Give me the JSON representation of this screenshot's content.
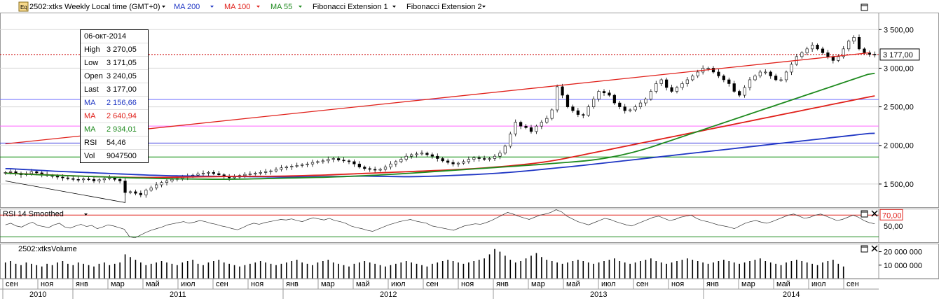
{
  "header": {
    "icon_label": "Eq",
    "instrument": "2502:xtks Weekly Local time (GMT+0)",
    "indicators": [
      {
        "label": "MA 200",
        "color": "#1f36c4"
      },
      {
        "label": "MA 100",
        "color": "#e0201a"
      },
      {
        "label": "MA 55",
        "color": "#1e8a1e"
      },
      {
        "label": "Fibonacci Extension 1",
        "color": "#000000"
      },
      {
        "label": "Fibonacci Extension 2",
        "color": "#000000"
      }
    ]
  },
  "info": {
    "date": "06-окт-2014",
    "rows": [
      {
        "label": "High",
        "value": "3 270,05",
        "color": "#000000"
      },
      {
        "label": "Low",
        "value": "3 171,05",
        "color": "#000000"
      },
      {
        "label": "Open",
        "value": "3 240,05",
        "color": "#000000"
      },
      {
        "label": "Last",
        "value": "3 177,00",
        "color": "#000000"
      },
      {
        "label": "MA",
        "value": "2 156,66",
        "color": "#1f36c4"
      },
      {
        "label": "MA",
        "value": "2 640,94",
        "color": "#e0201a"
      },
      {
        "label": "MA",
        "value": "2 934,01",
        "color": "#1e8a1e"
      },
      {
        "label": "RSI",
        "value": "54,46",
        "color": "#000000"
      },
      {
        "label": "Vol",
        "value": "9047500",
        "color": "#000000"
      }
    ]
  },
  "price_axis": {
    "ticks": [
      "3 500,00",
      "3 000,00",
      "2 500,00",
      "2 000,00",
      "1 500,00"
    ],
    "tick_values": [
      3500,
      3000,
      2500,
      2000,
      1500
    ],
    "range": [
      1200,
      3720
    ],
    "last_label": "3 177,00",
    "last_value": 3177
  },
  "rsi": {
    "title": "RSI 14 Smoothed",
    "ticks": [
      "70,00",
      "50,00"
    ],
    "tick_values": [
      70,
      50
    ],
    "range": [
      20,
      82
    ],
    "upper": 70,
    "lower": 30
  },
  "volume": {
    "title": "2502:xtksVolume",
    "ticks": [
      "20 000 000",
      "10 000 000"
    ],
    "tick_values": [
      20000000,
      10000000
    ],
    "range": [
      0,
      26000000
    ]
  },
  "time_axis": {
    "months": [
      "сен",
      "ноя",
      "янв",
      "мар",
      "май",
      "июл",
      "сен",
      "ноя",
      "янв",
      "мар",
      "май",
      "июл",
      "сен",
      "ноя",
      "янв",
      "мар",
      "май",
      "июл",
      "сен",
      "ноя",
      "янв",
      "мар",
      "май",
      "июл",
      "сен"
    ],
    "years": [
      {
        "label": "2010",
        "start": 0,
        "end": 2
      },
      {
        "label": "2011",
        "start": 2,
        "end": 8
      },
      {
        "label": "2012",
        "start": 8,
        "end": 14
      },
      {
        "label": "2013",
        "start": 14,
        "end": 20
      },
      {
        "label": "2014",
        "start": 20,
        "end": 25
      }
    ]
  },
  "chart_data": {
    "type": "candlestick",
    "title": "2502:xtks Weekly Local time (GMT+0)",
    "x_range": [
      "2010-08",
      "2014-10"
    ],
    "close": [
      1650,
      1660,
      1640,
      1620,
      1635,
      1660,
      1645,
      1625,
      1610,
      1600,
      1590,
      1580,
      1570,
      1560,
      1555,
      1565,
      1560,
      1540,
      1555,
      1570,
      1580,
      1560,
      1540,
      1390,
      1400,
      1380,
      1360,
      1420,
      1450,
      1490,
      1520,
      1540,
      1560,
      1575,
      1590,
      1600,
      1615,
      1630,
      1640,
      1650,
      1635,
      1620,
      1600,
      1580,
      1590,
      1610,
      1625,
      1630,
      1640,
      1650,
      1660,
      1670,
      1690,
      1710,
      1720,
      1730,
      1740,
      1750,
      1760,
      1780,
      1790,
      1800,
      1820,
      1830,
      1810,
      1800,
      1790,
      1760,
      1720,
      1700,
      1690,
      1680,
      1690,
      1720,
      1760,
      1790,
      1820,
      1860,
      1880,
      1890,
      1900,
      1880,
      1860,
      1830,
      1800,
      1780,
      1760,
      1770,
      1790,
      1820,
      1840,
      1830,
      1820,
      1830,
      1860,
      1900,
      1990,
      2150,
      2300,
      2250,
      2230,
      2180,
      2250,
      2300,
      2350,
      2460,
      2760,
      2650,
      2500,
      2450,
      2400,
      2390,
      2500,
      2600,
      2700,
      2680,
      2650,
      2550,
      2500,
      2450,
      2460,
      2500,
      2550,
      2600,
      2700,
      2800,
      2850,
      2750,
      2700,
      2750,
      2800,
      2850,
      2900,
      2950,
      3000,
      3000,
      2950,
      2900,
      2850,
      2800,
      2700,
      2650,
      2750,
      2850,
      2900,
      2950,
      2950,
      2900,
      2850,
      2850,
      2950,
      3050,
      3150,
      3200,
      3250,
      3300,
      3250,
      3200,
      3150,
      3100,
      3150,
      3250,
      3350,
      3400,
      3250,
      3200,
      3180,
      3177
    ],
    "ma200": [
      1700,
      1698,
      1694,
      1690,
      1686,
      1682,
      1678,
      1674,
      1670,
      1666,
      1663,
      1660,
      1657,
      1654,
      1651,
      1648,
      1645,
      1642,
      1639,
      1636,
      1633,
      1630,
      1627,
      1624,
      1621,
      1618,
      1615,
      1613,
      1611,
      1609,
      1607,
      1606,
      1605,
      1604,
      1603,
      1602,
      1601,
      1601,
      1600,
      1600,
      1599,
      1599,
      1598,
      1597,
      1596,
      1595,
      1594,
      1593,
      1592,
      1591,
      1590,
      1590,
      1590,
      1591,
      1592,
      1593,
      1594,
      1595,
      1596,
      1597,
      1598,
      1599,
      1600,
      1601,
      1602,
      1602,
      1601,
      1600,
      1599,
      1598,
      1597,
      1596,
      1595,
      1595,
      1596,
      1597,
      1599,
      1601,
      1603,
      1606,
      1609,
      1612,
      1615,
      1618,
      1621,
      1624,
      1628,
      1632,
      1636,
      1641,
      1646,
      1651,
      1657,
      1663,
      1669,
      1676,
      1683,
      1690,
      1697,
      1704,
      1711,
      1718,
      1725,
      1732,
      1739,
      1747,
      1755,
      1763,
      1771,
      1779,
      1787,
      1795,
      1803,
      1811,
      1819,
      1827,
      1835,
      1843,
      1851,
      1859,
      1867,
      1875,
      1883,
      1891,
      1899,
      1907,
      1915,
      1923,
      1931,
      1939,
      1947,
      1955,
      1963,
      1971,
      1979,
      1987,
      1995,
      2003,
      2011,
      2019,
      2027,
      2035,
      2043,
      2051,
      2059,
      2067,
      2075,
      2083,
      2091,
      2099,
      2107,
      2115,
      2123,
      2131,
      2139,
      2147,
      2155,
      2157
    ],
    "ma100": [
      1640,
      1638,
      1635,
      1632,
      1629,
      1626,
      1623,
      1620,
      1617,
      1614,
      1611,
      1608,
      1605,
      1602,
      1600,
      1598,
      1596,
      1594,
      1592,
      1590,
      1588,
      1587,
      1586,
      1585,
      1585,
      1585,
      1585,
      1586,
      1587,
      1588,
      1589,
      1590,
      1591,
      1592,
      1593,
      1594,
      1595,
      1596,
      1597,
      1598,
      1599,
      1600,
      1600,
      1600,
      1600,
      1600,
      1600,
      1601,
      1602,
      1603,
      1605,
      1607,
      1609,
      1611,
      1613,
      1615,
      1617,
      1620,
      1623,
      1626,
      1629,
      1632,
      1635,
      1638,
      1641,
      1644,
      1647,
      1650,
      1653,
      1656,
      1659,
      1662,
      1665,
      1668,
      1671,
      1674,
      1677,
      1680,
      1684,
      1688,
      1692,
      1696,
      1700,
      1705,
      1710,
      1716,
      1722,
      1728,
      1734,
      1741,
      1748,
      1756,
      1764,
      1773,
      1783,
      1794,
      1806,
      1819,
      1833,
      1848,
      1863,
      1878,
      1893,
      1908,
      1923,
      1938,
      1953,
      1968,
      1983,
      1998,
      2013,
      2028,
      2043,
      2058,
      2073,
      2088,
      2103,
      2118,
      2133,
      2148,
      2163,
      2178,
      2193,
      2208,
      2223,
      2238,
      2253,
      2268,
      2283,
      2298,
      2313,
      2328,
      2343,
      2358,
      2373,
      2388,
      2403,
      2418,
      2433,
      2448,
      2463,
      2478,
      2493,
      2508,
      2523,
      2538,
      2553,
      2568,
      2583,
      2598,
      2613,
      2628,
      2641
    ],
    "ma55": [
      1640,
      1636,
      1632,
      1628,
      1624,
      1620,
      1617,
      1614,
      1611,
      1608,
      1605,
      1602,
      1599,
      1596,
      1593,
      1590,
      1587,
      1584,
      1581,
      1579,
      1577,
      1575,
      1573,
      1571,
      1569,
      1567,
      1566,
      1565,
      1564,
      1563,
      1562,
      1562,
      1562,
      1563,
      1564,
      1565,
      1567,
      1569,
      1571,
      1573,
      1575,
      1577,
      1579,
      1581,
      1583,
      1585,
      1587,
      1590,
      1593,
      1596,
      1600,
      1604,
      1608,
      1612,
      1616,
      1621,
      1626,
      1631,
      1636,
      1642,
      1648,
      1654,
      1660,
      1666,
      1672,
      1678,
      1684,
      1690,
      1696,
      1702,
      1708,
      1714,
      1720,
      1726,
      1732,
      1738,
      1744,
      1750,
      1757,
      1764,
      1771,
      1778,
      1785,
      1792,
      1800,
      1810,
      1822,
      1836,
      1852,
      1870,
      1890,
      1912,
      1936,
      1962,
      1990,
      2020,
      2050,
      2080,
      2110,
      2140,
      2170,
      2200,
      2230,
      2260,
      2290,
      2320,
      2350,
      2380,
      2410,
      2440,
      2470,
      2500,
      2530,
      2560,
      2590,
      2620,
      2650,
      2680,
      2710,
      2740,
      2770,
      2800,
      2830,
      2860,
      2890,
      2920,
      2934
    ],
    "fib_line": {
      "start": [
        0,
        2020
      ],
      "end": [
        166,
        3200
      ]
    },
    "horizontal_levels": [
      {
        "value": 2595,
        "color": "#7070ff"
      },
      {
        "value": 2250,
        "color": "#ff66ff"
      },
      {
        "value": 2030,
        "color": "#4040e0"
      },
      {
        "value": 1850,
        "color": "#008800"
      },
      {
        "value": 3177,
        "color": "#cc0000",
        "dotted": true
      }
    ],
    "rsi_values": [
      52,
      55,
      50,
      48,
      53,
      57,
      51,
      49,
      47,
      52,
      55,
      48,
      46,
      50,
      53,
      49,
      51,
      45,
      48,
      52,
      50,
      47,
      44,
      30,
      28,
      33,
      38,
      42,
      45,
      48,
      52,
      54,
      56,
      58,
      55,
      57,
      60,
      58,
      55,
      53,
      50,
      48,
      45,
      43,
      47,
      52,
      55,
      53,
      56,
      58,
      60,
      62,
      61,
      63,
      60,
      58,
      62,
      65,
      63,
      61,
      64,
      60,
      58,
      55,
      50,
      47,
      45,
      42,
      40,
      44,
      48,
      52,
      55,
      58,
      60,
      62,
      59,
      57,
      55,
      50,
      48,
      46,
      44,
      42,
      46,
      50,
      52,
      54,
      53,
      56,
      60,
      65,
      70,
      75,
      72,
      68,
      65,
      62,
      66,
      70,
      72,
      75,
      80,
      76,
      68,
      63,
      58,
      55,
      52,
      56,
      60,
      64,
      62,
      58,
      55,
      52,
      50,
      54,
      58,
      62,
      66,
      68,
      64,
      60,
      62,
      66,
      68,
      70,
      64,
      60,
      58,
      55,
      52,
      50,
      48,
      45,
      50,
      55,
      58,
      60,
      57,
      55,
      58,
      62,
      66,
      70,
      72,
      68,
      64,
      66,
      70,
      72,
      68,
      64,
      60,
      62,
      66,
      70,
      66,
      60,
      56,
      54
    ],
    "volume_values": [
      12,
      13,
      11,
      10,
      12,
      11,
      10,
      9,
      11,
      10,
      12,
      13,
      11,
      10,
      12,
      11,
      10,
      9,
      11,
      12,
      10,
      11,
      12,
      18,
      16,
      14,
      12,
      10,
      11,
      12,
      13,
      12,
      11,
      10,
      12,
      13,
      14,
      11,
      10,
      12,
      13,
      14,
      12,
      11,
      10,
      9,
      10,
      11,
      12,
      13,
      12,
      11,
      10,
      11,
      12,
      13,
      14,
      12,
      11,
      10,
      12,
      13,
      14,
      12,
      11,
      10,
      9,
      11,
      12,
      13,
      12,
      11,
      10,
      9,
      10,
      11,
      12,
      13,
      12,
      11,
      10,
      9,
      11,
      12,
      13,
      14,
      13,
      12,
      11,
      12,
      13,
      14,
      15,
      18,
      22,
      20,
      17,
      14,
      12,
      13,
      15,
      17,
      19,
      16,
      14,
      13,
      12,
      11,
      12,
      13,
      14,
      13,
      12,
      11,
      12,
      13,
      14,
      15,
      13,
      12,
      11,
      12,
      13,
      14,
      15,
      13,
      12,
      11,
      12,
      13,
      14,
      15,
      14,
      13,
      12,
      11,
      12,
      13,
      14,
      13,
      12,
      11,
      12,
      13,
      14,
      15,
      13,
      12,
      11,
      10,
      12,
      13,
      14,
      13,
      12,
      11,
      10,
      12,
      13,
      14,
      11,
      9
    ]
  }
}
